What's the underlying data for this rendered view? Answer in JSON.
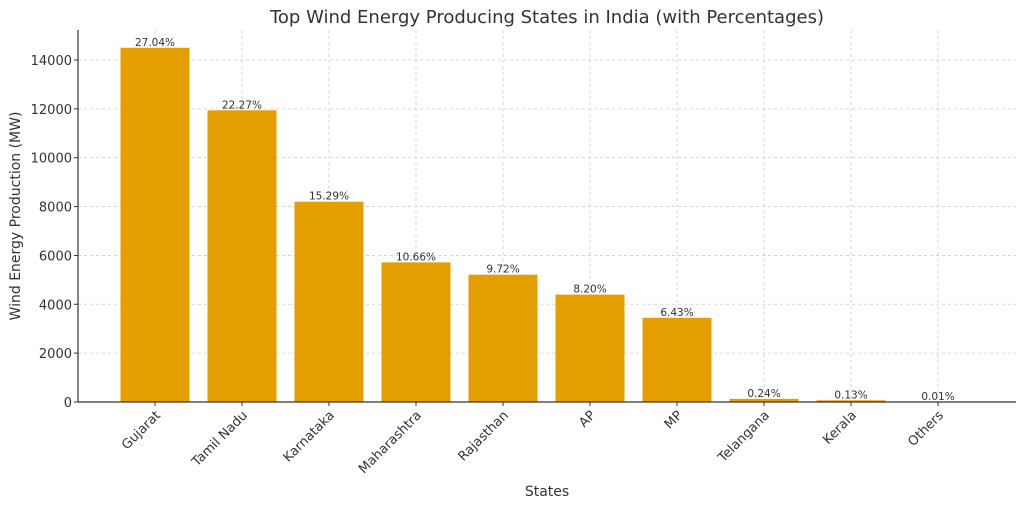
{
  "chart_data": {
    "type": "bar",
    "title": "Top Wind Energy Producing States in India (with Percentages)",
    "xlabel": "States",
    "ylabel": "Wind Energy Production (MW)",
    "categories": [
      "Gujarat",
      "Tamil Nadu",
      "Karnataka",
      "Maharashtra",
      "Rajasthan",
      "AP",
      "MP",
      "Telangana",
      "Kerala",
      "Others"
    ],
    "values": [
      14500,
      11942,
      8199,
      5716,
      5212,
      4397,
      3448,
      129,
      70,
      5
    ],
    "data_labels": [
      "27.04%",
      "22.27%",
      "15.29%",
      "10.66%",
      "9.72%",
      "8.20%",
      "6.43%",
      "0.24%",
      "0.13%",
      "0.01%"
    ],
    "yticks": [
      0,
      2000,
      4000,
      6000,
      8000,
      10000,
      12000,
      14000
    ],
    "ytick_labels": [
      "0",
      "2000",
      "4000",
      "6000",
      "8000",
      "10000",
      "12000",
      "14000"
    ],
    "ylim": [
      0,
      15225
    ],
    "grid": true,
    "bar_color": "#e49e00"
  }
}
